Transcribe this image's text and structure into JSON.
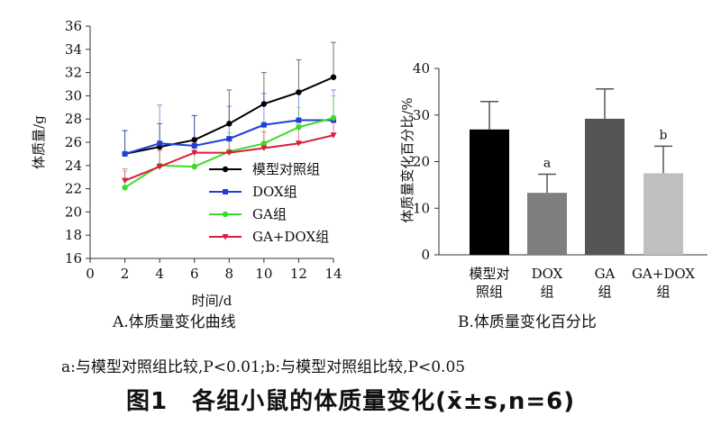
{
  "chart_data": [
    {
      "type": "line",
      "caption": "A.体质量变化曲线",
      "xlabel": "时间/d",
      "ylabel": "体质量/g",
      "xlim": [
        0,
        14
      ],
      "ylim": [
        16,
        36
      ],
      "xticks": [
        "0",
        "2",
        "4",
        "6",
        "8",
        "10",
        "12",
        "14"
      ],
      "yticks": [
        "16",
        "18",
        "20",
        "22",
        "24",
        "26",
        "28",
        "30",
        "32",
        "34",
        "36"
      ],
      "x": [
        2,
        4,
        6,
        8,
        10,
        12,
        14
      ],
      "legend_position": "bottom-right",
      "series": [
        {
          "name": "模型对照组",
          "color": "#000000",
          "marker": "circle",
          "values": [
            25.0,
            25.6,
            26.2,
            27.6,
            29.3,
            30.3,
            31.6
          ],
          "errors": [
            2.0,
            2.0,
            2.1,
            2.9,
            2.7,
            2.8,
            3.0
          ]
        },
        {
          "name": "DOX组",
          "color": "#1f3fd6",
          "marker": "square",
          "values": [
            25.0,
            25.9,
            25.7,
            26.3,
            27.5,
            27.9,
            27.9
          ],
          "errors": [
            2.0,
            3.3,
            2.6,
            2.8,
            2.7,
            2.6,
            2.6
          ]
        },
        {
          "name": "GA组",
          "color": "#3ddc2a",
          "marker": "circle",
          "values": [
            22.1,
            24.0,
            23.9,
            25.2,
            25.9,
            27.3,
            28.1
          ],
          "errors": [
            1.4,
            1.6,
            1.6,
            1.6,
            1.7,
            1.7,
            1.9
          ]
        },
        {
          "name": "GA+DOX组",
          "color": "#d81e3c",
          "marker": "triangle-down",
          "values": [
            22.7,
            23.9,
            25.1,
            25.1,
            25.5,
            25.9,
            26.6
          ],
          "errors": [
            1.0,
            1.4,
            1.3,
            1.2,
            1.4,
            1.6,
            1.3
          ]
        }
      ]
    },
    {
      "type": "bar",
      "caption": "B.体质量变化百分比",
      "ylabel": "体质量变化百分比/%",
      "ylim": [
        0,
        40
      ],
      "yticks": [
        "0",
        "10",
        "20",
        "30",
        "40"
      ],
      "categories": [
        "模型对\n照组",
        "DOX\n组",
        "GA\n组",
        "GA+DOX\n组"
      ],
      "values": [
        26.9,
        13.3,
        29.2,
        17.5
      ],
      "errors": [
        6.0,
        4.0,
        6.4,
        5.8
      ],
      "bar_colors": [
        "#000000",
        "#7f7f7f",
        "#555555",
        "#bfbfbf"
      ],
      "annotations": [
        "",
        "a",
        "",
        "b"
      ]
    }
  ],
  "note": "a:与模型对照组比较,P<0.01;b:与模型对照组比较,P<0.05",
  "figure_title": "图1　各组小鼠的体质量变化(x̄±s,n=6)"
}
